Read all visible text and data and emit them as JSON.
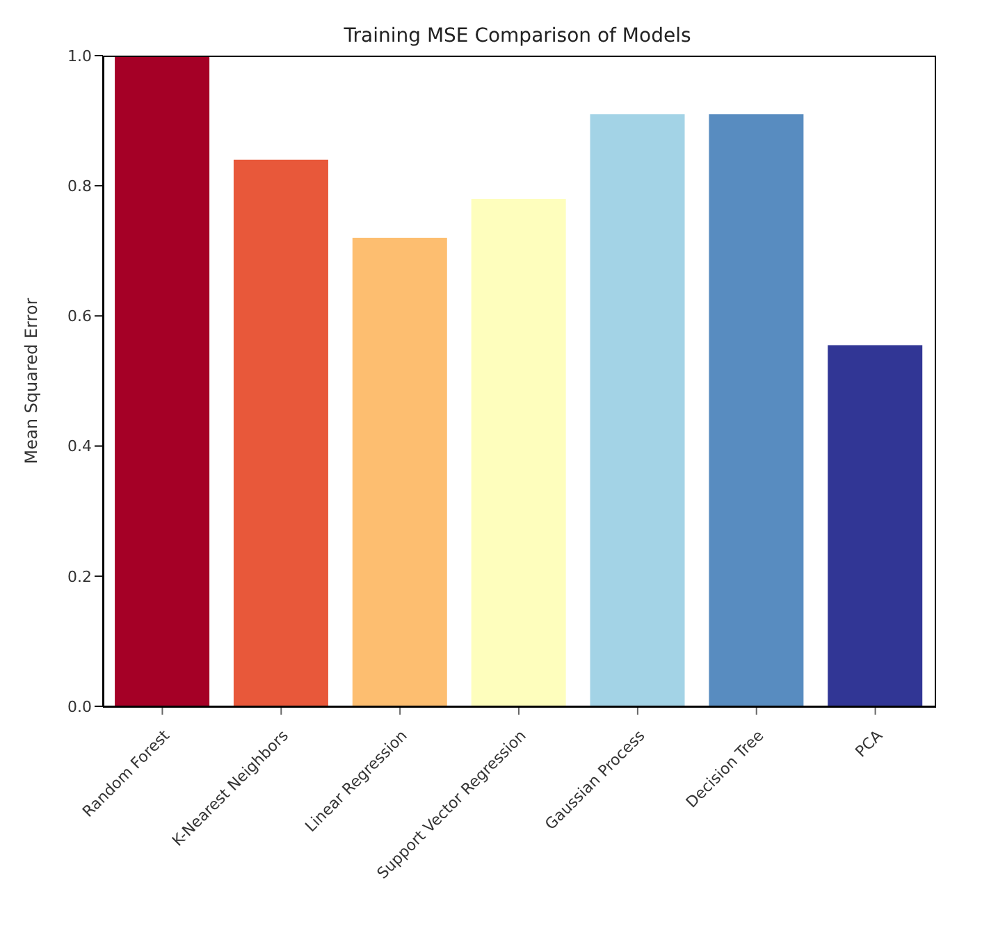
{
  "chart_data": {
    "type": "bar",
    "title": "Training MSE Comparison of Models",
    "ylabel": "Mean Squared Error",
    "categories": [
      "Random Forest",
      "K-Nearest Neighbors",
      "Linear Regression",
      "Support Vector Regression",
      "Gaussian Process",
      "Decision Tree",
      "PCA"
    ],
    "values": [
      1.0,
      0.84,
      0.72,
      0.78,
      0.91,
      0.91,
      0.555
    ],
    "colors": [
      "#a50026",
      "#e8583a",
      "#fdbe70",
      "#fefebd",
      "#a3d3e6",
      "#588cc0",
      "#313695"
    ],
    "ylim": [
      0,
      1.0
    ],
    "yticks": [
      {
        "value": 0,
        "label": "0.0"
      },
      {
        "value": 0.2,
        "label": "0.2"
      },
      {
        "value": 0.4,
        "label": "0.4"
      },
      {
        "value": 0.6,
        "label": "0.6"
      },
      {
        "value": 0.8,
        "label": "0.8"
      },
      {
        "value": 1.0,
        "label": "1.0"
      }
    ],
    "grid": false
  }
}
